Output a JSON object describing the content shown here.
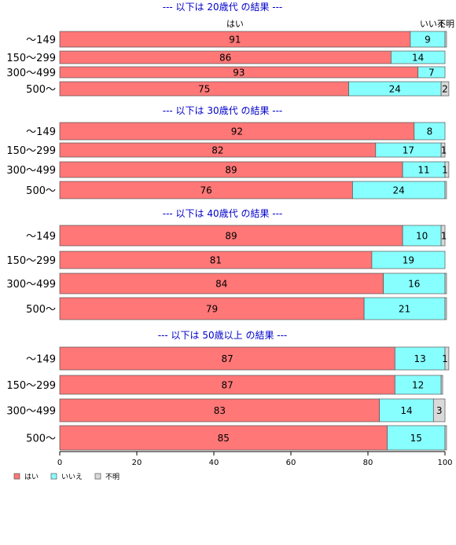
{
  "chart_data": {
    "type": "bar",
    "orientation": "horizontal",
    "stacked": true,
    "xlim": [
      0,
      100
    ],
    "x_ticks": [
      "0",
      "20",
      "40",
      "60",
      "80",
      "100"
    ],
    "column_headers": [
      "はい",
      "いいえ",
      "不明"
    ],
    "legend": {
      "placement": "bottom-left",
      "items": [
        {
          "label": "はい",
          "color": "#ff7777"
        },
        {
          "label": "いいえ",
          "color": "#88ffff"
        },
        {
          "label": "不明",
          "color": "#d9d9d9"
        }
      ]
    },
    "groups": [
      {
        "title": "--- 以下は 20歳代 の結果 ---",
        "categories": [
          "～149",
          "150～299",
          "300～499",
          "500～"
        ],
        "series": [
          {
            "name": "はい",
            "values": [
              91,
              86,
              93,
              75
            ]
          },
          {
            "name": "いいえ",
            "values": [
              9,
              14,
              7,
              24
            ]
          },
          {
            "name": "不明",
            "values": [
              0.4,
              0,
              0,
              2
            ]
          }
        ],
        "labels": [
          [
            "91",
            "9",
            ""
          ],
          [
            "86",
            "14",
            ""
          ],
          [
            "93",
            "7",
            ""
          ],
          [
            "75",
            "24",
            "2"
          ]
        ]
      },
      {
        "title": "--- 以下は 30歳代 の結果 ---",
        "categories": [
          "～149",
          "150～299",
          "300～499",
          "500～"
        ],
        "series": [
          {
            "name": "はい",
            "values": [
              92,
              82,
              89,
              76
            ]
          },
          {
            "name": "いいえ",
            "values": [
              8,
              17,
              11,
              24
            ]
          },
          {
            "name": "不明",
            "values": [
              0,
              1,
              1,
              0.4
            ]
          }
        ],
        "labels": [
          [
            "92",
            "8",
            ""
          ],
          [
            "82",
            "17",
            "1"
          ],
          [
            "89",
            "11",
            "1"
          ],
          [
            "76",
            "24",
            ""
          ]
        ]
      },
      {
        "title": "--- 以下は 40歳代 の結果 ---",
        "categories": [
          "～149",
          "150～299",
          "300～499",
          "500～"
        ],
        "series": [
          {
            "name": "はい",
            "values": [
              89,
              81,
              84,
              79
            ]
          },
          {
            "name": "いいえ",
            "values": [
              10,
              19,
              16,
              21
            ]
          },
          {
            "name": "不明",
            "values": [
              1,
              0,
              0.4,
              0.4
            ]
          }
        ],
        "labels": [
          [
            "89",
            "10",
            "1"
          ],
          [
            "81",
            "19",
            ""
          ],
          [
            "84",
            "16",
            ""
          ],
          [
            "79",
            "21",
            ""
          ]
        ]
      },
      {
        "title": "--- 以下は 50歳以上 の結果 ---",
        "categories": [
          "～149",
          "150～299",
          "300～499",
          "500～"
        ],
        "series": [
          {
            "name": "はい",
            "values": [
              87,
              87,
              83,
              85
            ]
          },
          {
            "name": "いいえ",
            "values": [
              13,
              12,
              14,
              15
            ]
          },
          {
            "name": "不明",
            "values": [
              1,
              0.4,
              3,
              0.4
            ]
          }
        ],
        "labels": [
          [
            "87",
            "13",
            "1"
          ],
          [
            "87",
            "12",
            ""
          ],
          [
            "83",
            "14",
            "3"
          ],
          [
            "85",
            "15",
            ""
          ]
        ]
      }
    ]
  }
}
